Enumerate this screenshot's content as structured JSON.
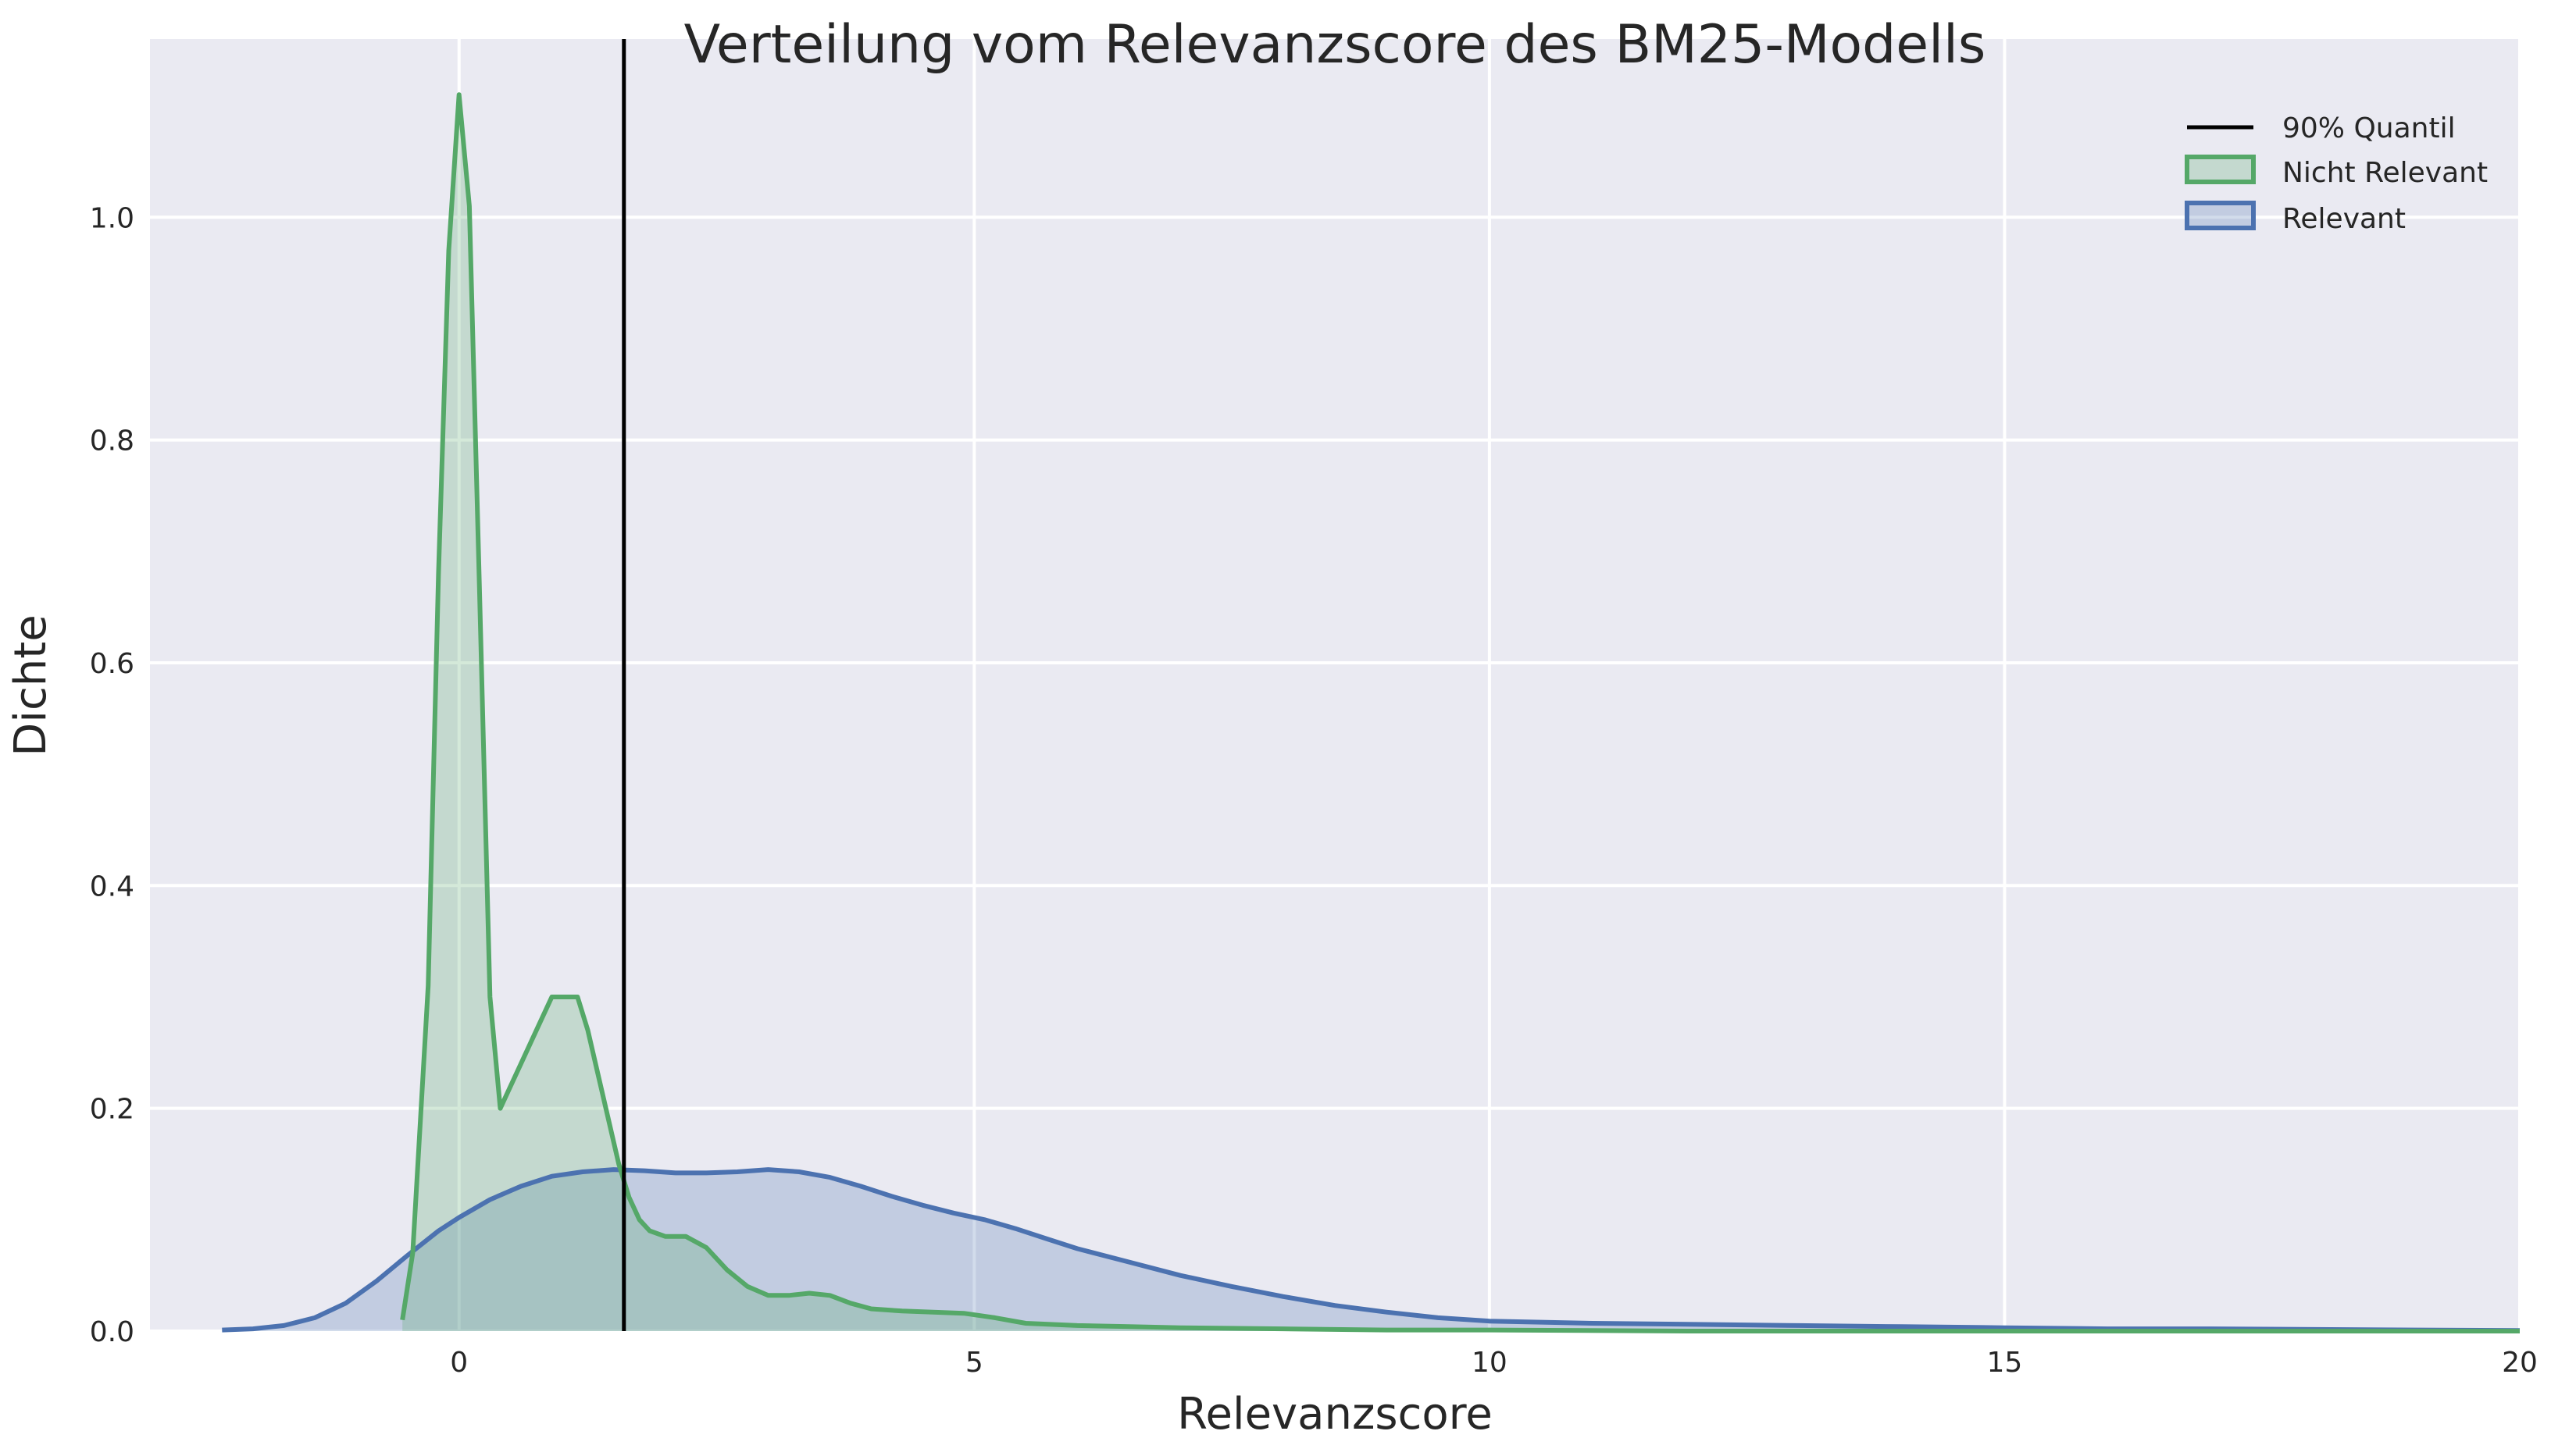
{
  "chart_data": {
    "type": "area",
    "title": "Verteilung vom Relevanzscore des BM25-Modells",
    "xlabel": "Relevanzscore",
    "ylabel": "Dichte",
    "xlim": [
      -3,
      20
    ],
    "ylim": [
      0,
      1.16
    ],
    "xticks": [
      0,
      5,
      10,
      15,
      20
    ],
    "yticks": [
      0.0,
      0.2,
      0.4,
      0.6,
      0.8,
      1.0
    ],
    "xtick_labels": [
      "0",
      "5",
      "10",
      "15",
      "20"
    ],
    "ytick_labels": [
      "0.0",
      "0.2",
      "0.4",
      "0.6",
      "0.8",
      "1.0"
    ],
    "grid": true,
    "legend_position": "top-right",
    "vline": {
      "name": "90% Quantil",
      "x": 1.6,
      "color": "#000000"
    },
    "series": [
      {
        "name": "Nicht Relevant",
        "color": "#55a868",
        "fill": "#55a868",
        "x": [
          -0.55,
          -0.45,
          -0.3,
          -0.2,
          -0.1,
          0.0,
          0.1,
          0.2,
          0.3,
          0.4,
          0.5,
          0.6,
          0.75,
          0.9,
          1.05,
          1.15,
          1.25,
          1.35,
          1.45,
          1.55,
          1.65,
          1.75,
          1.85,
          2.0,
          2.2,
          2.4,
          2.6,
          2.8,
          3.0,
          3.2,
          3.4,
          3.6,
          3.8,
          4.0,
          4.3,
          4.6,
          4.9,
          5.2,
          5.5,
          6.0,
          6.5,
          7.0,
          8.0,
          9.0,
          10.0,
          12.0,
          15.0,
          20.0
        ],
        "y": [
          0.01,
          0.07,
          0.31,
          0.68,
          0.97,
          1.11,
          1.01,
          0.66,
          0.3,
          0.2,
          0.22,
          0.24,
          0.27,
          0.3,
          0.3,
          0.3,
          0.27,
          0.23,
          0.19,
          0.15,
          0.12,
          0.1,
          0.09,
          0.085,
          0.085,
          0.075,
          0.055,
          0.04,
          0.032,
          0.032,
          0.034,
          0.032,
          0.025,
          0.02,
          0.018,
          0.017,
          0.016,
          0.012,
          0.007,
          0.005,
          0.004,
          0.003,
          0.002,
          0.001,
          0.001,
          0.0,
          0.0,
          0.0
        ]
      },
      {
        "name": "Relevant",
        "color": "#4c72b0",
        "fill": "#4c72b0",
        "x": [
          -2.3,
          -2.0,
          -1.7,
          -1.4,
          -1.1,
          -0.8,
          -0.5,
          -0.2,
          0.0,
          0.3,
          0.6,
          0.9,
          1.2,
          1.5,
          1.8,
          2.1,
          2.4,
          2.7,
          3.0,
          3.3,
          3.6,
          3.9,
          4.2,
          4.5,
          4.8,
          5.1,
          5.4,
          5.7,
          6.0,
          6.5,
          7.0,
          7.5,
          8.0,
          8.5,
          9.0,
          9.5,
          10.0,
          11.0,
          12.0,
          13.0,
          14.0,
          15.0,
          16.0,
          17.0,
          18.0,
          19.0,
          20.0
        ],
        "y": [
          0.001,
          0.002,
          0.005,
          0.012,
          0.025,
          0.045,
          0.068,
          0.09,
          0.102,
          0.118,
          0.13,
          0.139,
          0.143,
          0.145,
          0.144,
          0.142,
          0.142,
          0.143,
          0.145,
          0.143,
          0.138,
          0.13,
          0.121,
          0.113,
          0.106,
          0.1,
          0.092,
          0.083,
          0.074,
          0.062,
          0.05,
          0.04,
          0.031,
          0.023,
          0.017,
          0.012,
          0.009,
          0.007,
          0.006,
          0.005,
          0.004,
          0.003,
          0.002,
          0.002,
          0.0015,
          0.001,
          0.0005
        ]
      }
    ]
  }
}
